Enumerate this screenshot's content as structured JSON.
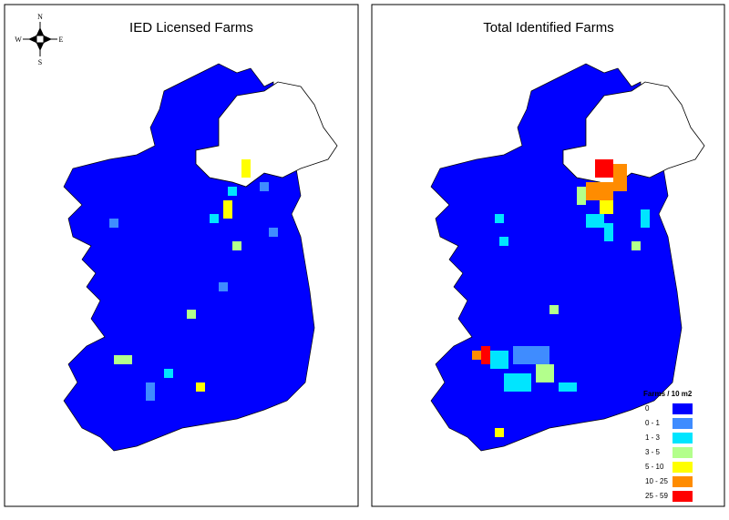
{
  "maps": [
    {
      "title": "IED Licensed Farms",
      "compass": {
        "n": "N",
        "s": "S",
        "w": "W",
        "e": "E"
      }
    },
    {
      "title": "Total Identified Farms",
      "legend": {
        "title": "Farms / 10 m2",
        "items": [
          {
            "label": "0",
            "color": "#0000ff"
          },
          {
            "label": "0 - 1",
            "color": "#3f8cff"
          },
          {
            "label": "1 - 3",
            "color": "#00e5ff"
          },
          {
            "label": "3 - 5",
            "color": "#b3ff8c"
          },
          {
            "label": "5 - 10",
            "color": "#ffff00"
          },
          {
            "label": "10 - 25",
            "color": "#ff8c00"
          },
          {
            "label": "25 - 59",
            "color": "#ff0000"
          }
        ]
      }
    }
  ]
}
